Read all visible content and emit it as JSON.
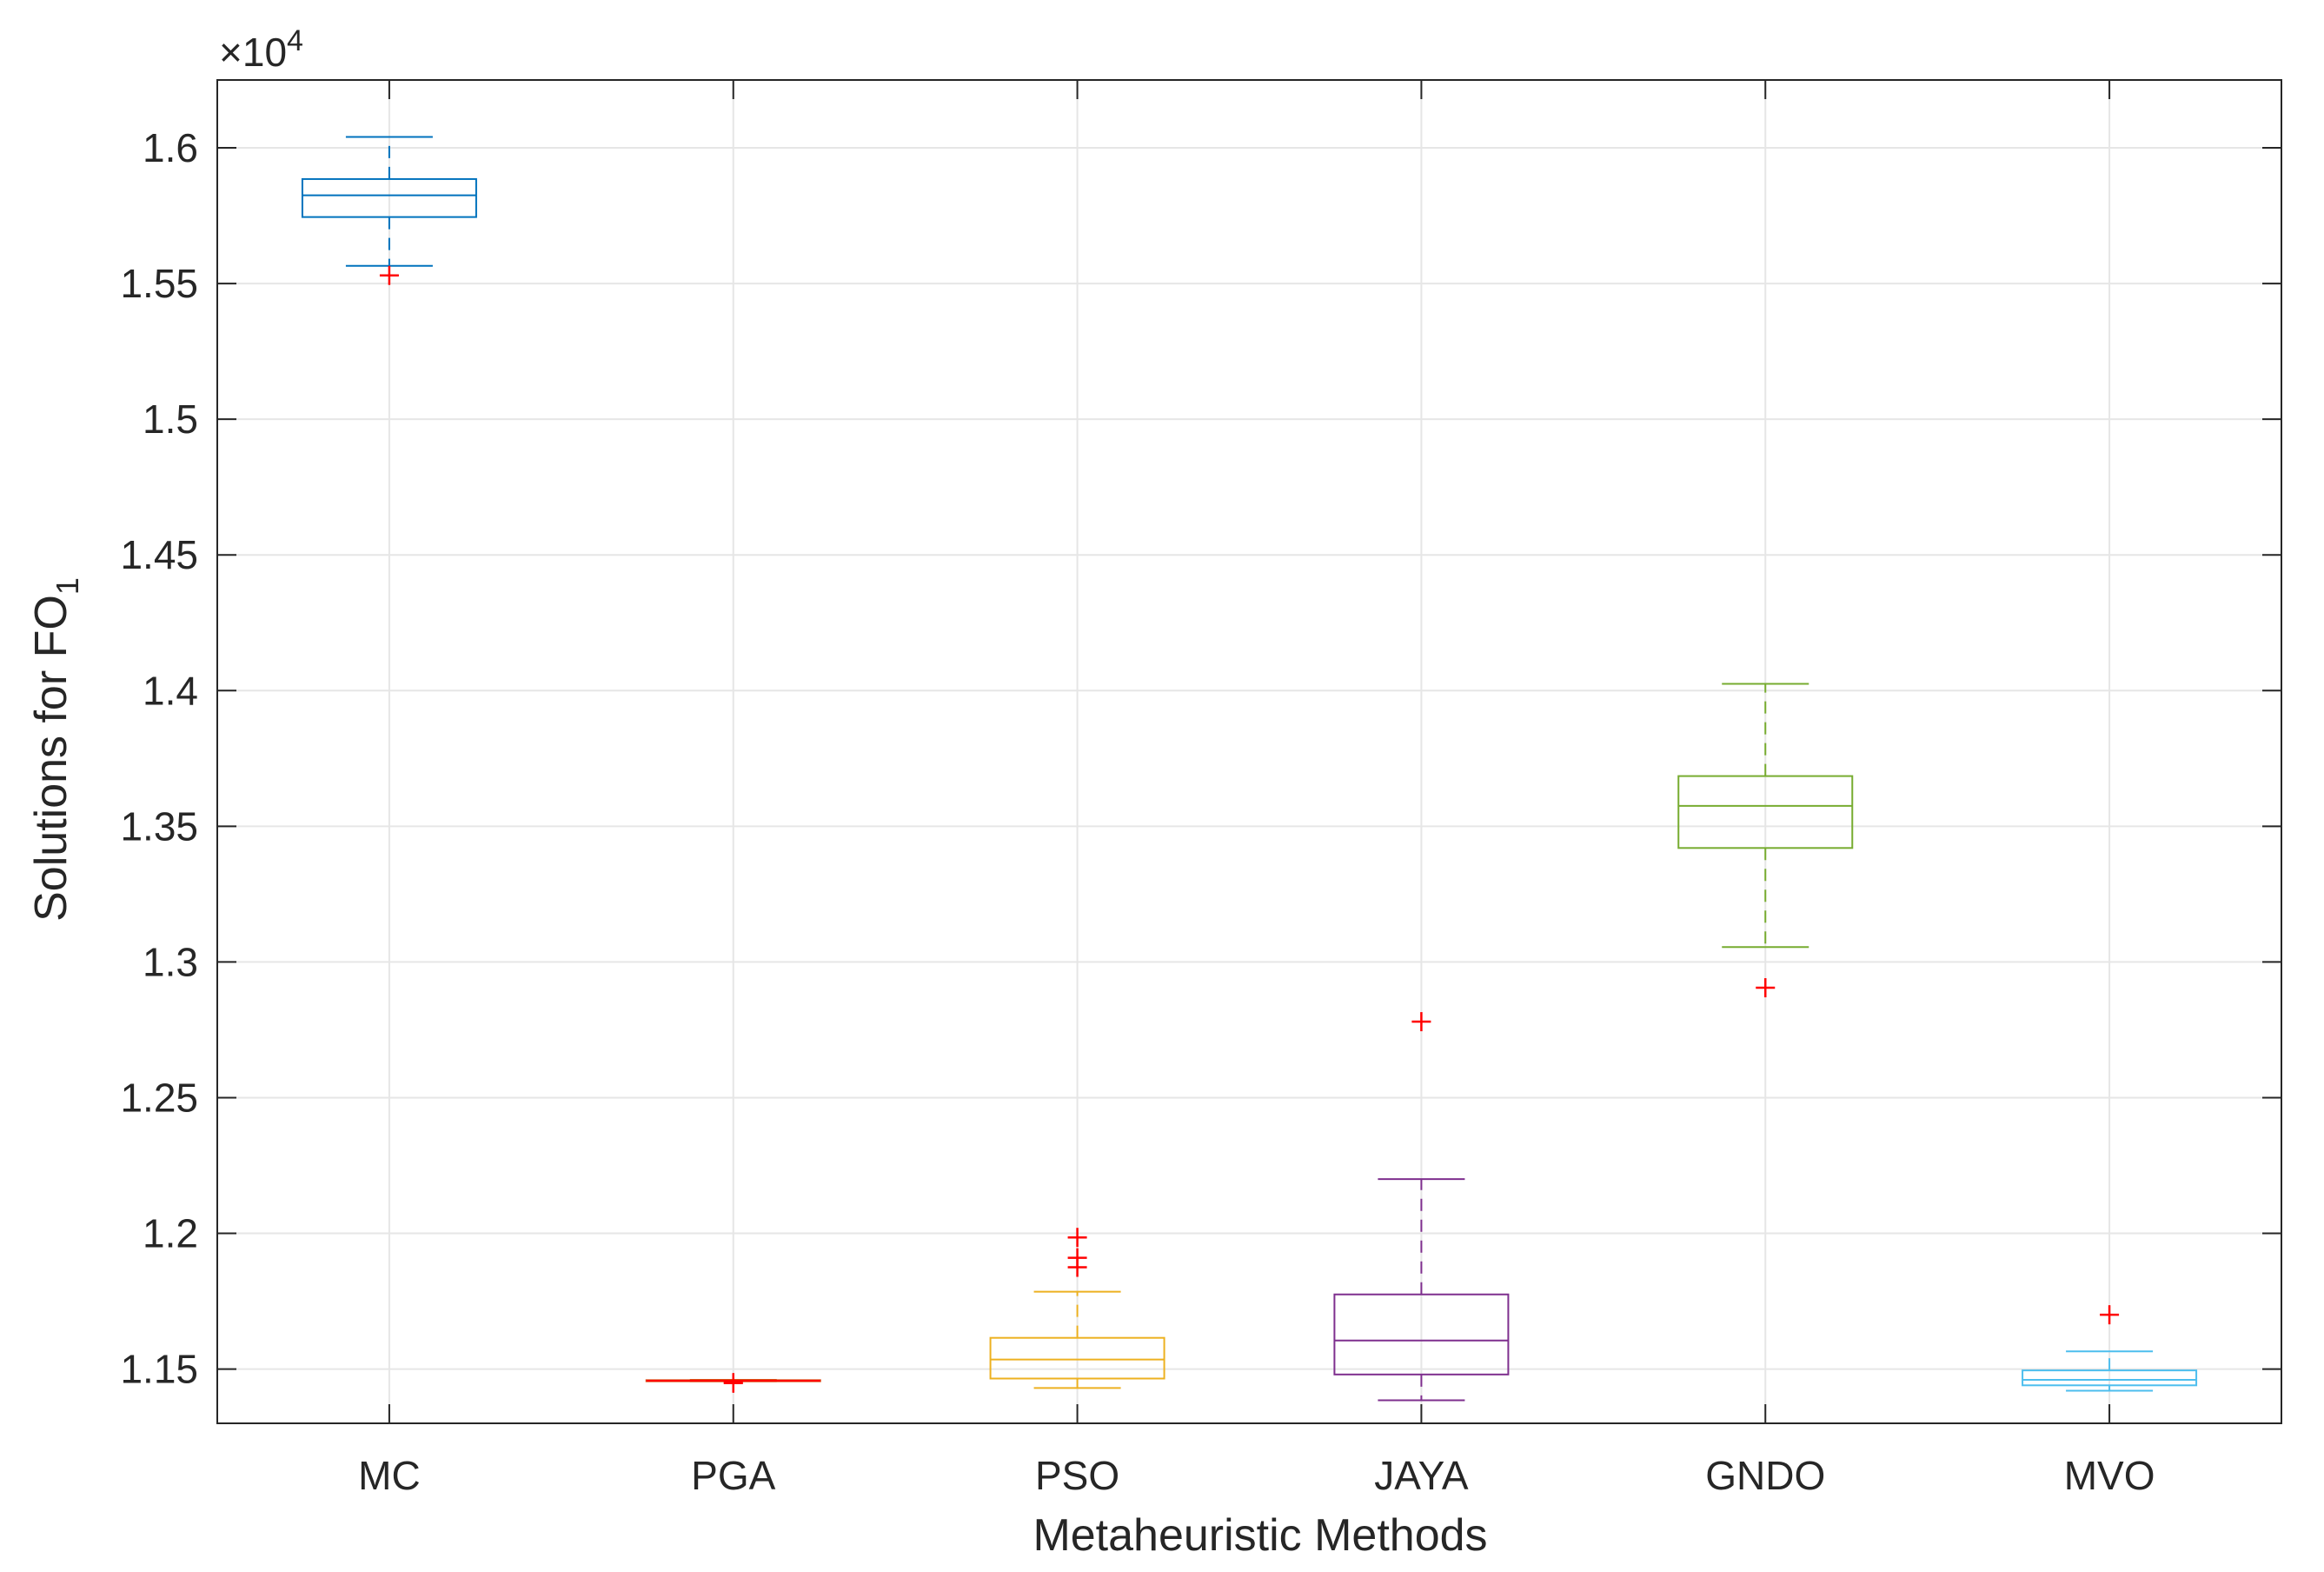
{
  "chart_data": {
    "type": "boxplot",
    "xlabel": "Metaheuristic Methods",
    "ylabel": {
      "main": "Solutions for FO",
      "subscript": "1"
    },
    "exponent_label": {
      "prefix": "×10",
      "power": "4"
    },
    "ylim": [
      11300,
      16250
    ],
    "yticks": [
      11500,
      12000,
      12500,
      13000,
      13500,
      14000,
      14500,
      15000,
      15500,
      16000
    ],
    "ytick_labels": [
      "1.15",
      "1.2",
      "1.25",
      "1.3",
      "1.35",
      "1.4",
      "1.45",
      "1.5",
      "1.55",
      "1.6"
    ],
    "grid": true,
    "categories": [
      "MC",
      "PGA",
      "PSO",
      "JAYA",
      "GNDO",
      "MVO"
    ],
    "boxes": [
      {
        "name": "MC",
        "color": "#0072BD",
        "q1": 15745,
        "median": 15825,
        "q3": 15885,
        "whisker_low": 15565,
        "whisker_high": 16040,
        "outliers": [
          15530
        ]
      },
      {
        "name": "PGA",
        "color": "#D95319",
        "q1": 11455,
        "median": 11457,
        "q3": 11459,
        "whisker_low": 11455,
        "whisker_high": 11460,
        "outliers": [
          11448,
          11450
        ]
      },
      {
        "name": "PSO",
        "color": "#EDB120",
        "q1": 11465,
        "median": 11535,
        "q3": 11615,
        "whisker_low": 11430,
        "whisker_high": 11785,
        "outliers": [
          11875,
          11910,
          11985
        ]
      },
      {
        "name": "JAYA",
        "color": "#7E2F8E",
        "q1": 11480,
        "median": 11605,
        "q3": 11775,
        "whisker_low": 11385,
        "whisker_high": 12200,
        "outliers": [
          12780
        ]
      },
      {
        "name": "GNDO",
        "color": "#77AC30",
        "q1": 13420,
        "median": 13575,
        "q3": 13685,
        "whisker_low": 13055,
        "whisker_high": 14025,
        "outliers": [
          12905
        ]
      },
      {
        "name": "MVO",
        "color": "#4DBEEE",
        "q1": 11440,
        "median": 11460,
        "q3": 11495,
        "whisker_low": 11420,
        "whisker_high": 11565,
        "outliers": [
          11700
        ]
      }
    ],
    "outlier_color": "#FF0000"
  }
}
